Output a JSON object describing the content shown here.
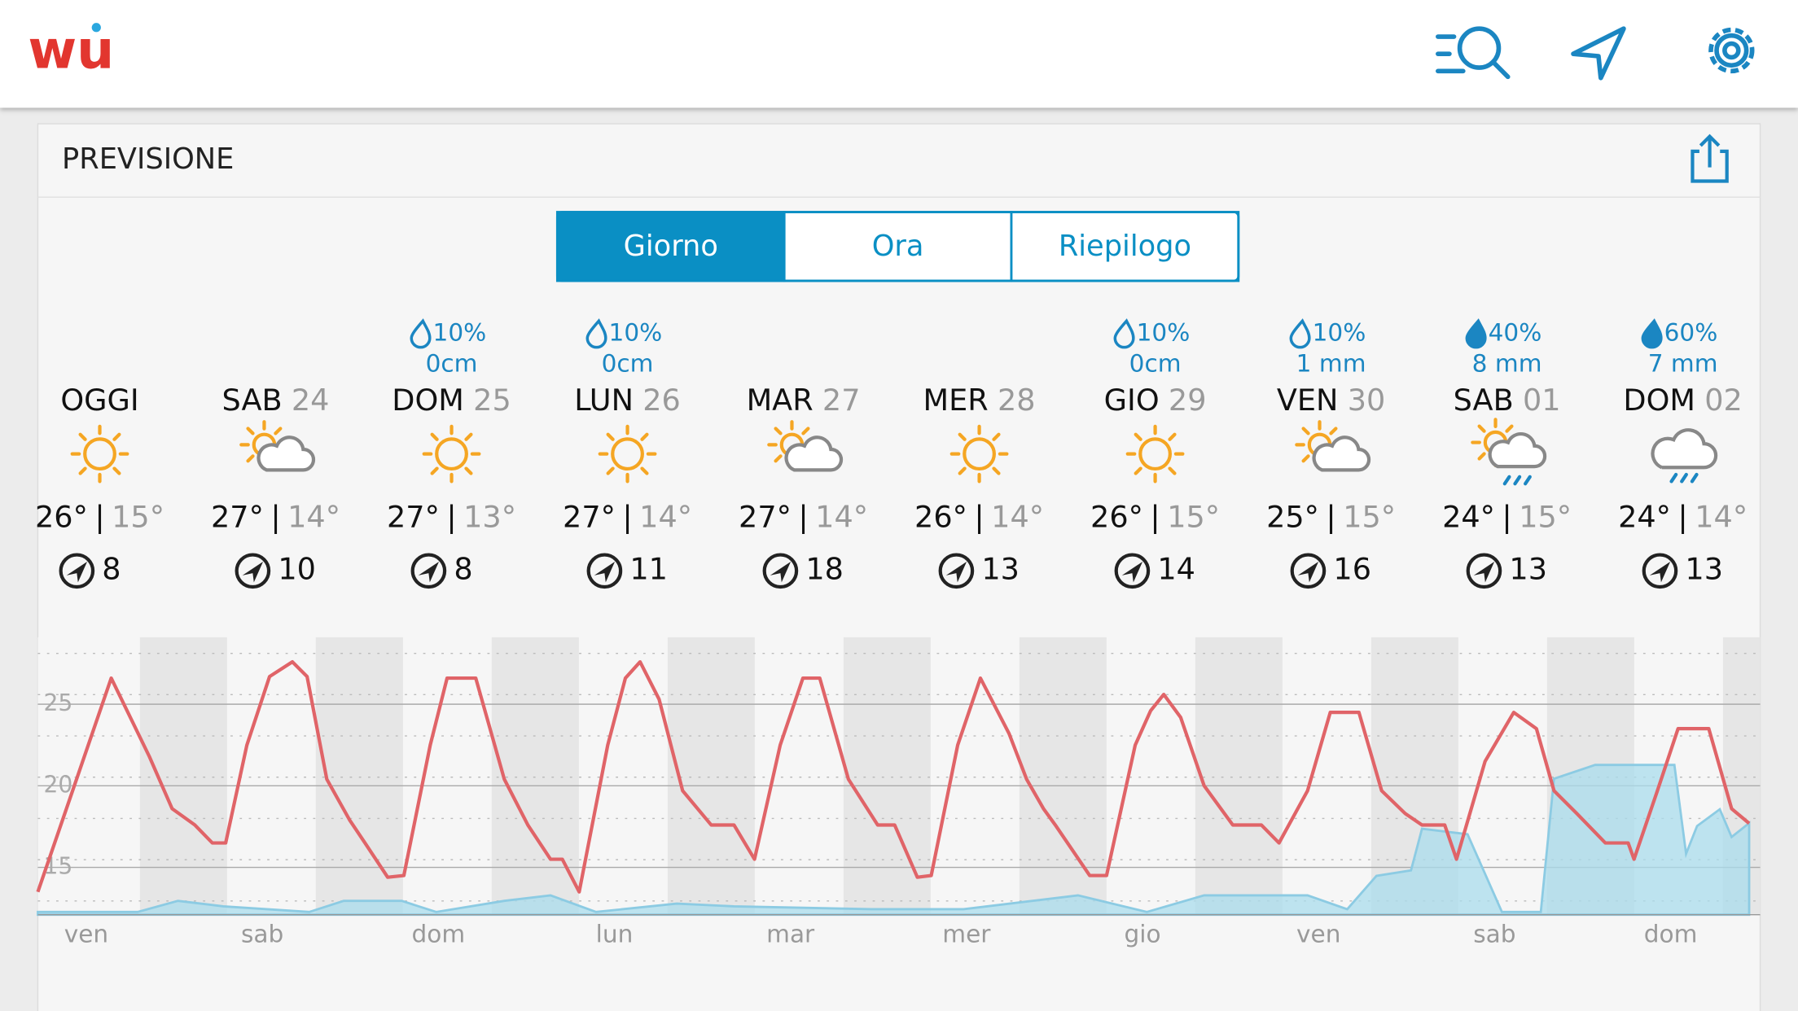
{
  "header": {
    "logo": "wu"
  },
  "panel": {
    "title": "PREVISIONE",
    "tabs": [
      "Giorno",
      "Ora",
      "Riepilogo"
    ],
    "selected_tab": 0
  },
  "days": [
    {
      "name": "OGGI",
      "date": null,
      "precip_chance": null,
      "precip_amount": null,
      "icon": "sunny",
      "high": "26°",
      "low": "15°",
      "wind": "8"
    },
    {
      "name": "SAB",
      "date": "24",
      "precip_chance": null,
      "precip_amount": null,
      "icon": "partly-cloudy",
      "high": "27°",
      "low": "14°",
      "wind": "10"
    },
    {
      "name": "DOM",
      "date": "25",
      "precip_chance": "10%",
      "precip_amount": "0cm",
      "icon": "sunny",
      "high": "27°",
      "low": "13°",
      "wind": "8"
    },
    {
      "name": "LUN",
      "date": "26",
      "precip_chance": "10%",
      "precip_amount": "0cm",
      "icon": "sunny",
      "high": "27°",
      "low": "14°",
      "wind": "11"
    },
    {
      "name": "MAR",
      "date": "27",
      "precip_chance": null,
      "precip_amount": null,
      "icon": "partly-cloudy",
      "high": "27°",
      "low": "14°",
      "wind": "18"
    },
    {
      "name": "MER",
      "date": "28",
      "precip_chance": null,
      "precip_amount": null,
      "icon": "sunny",
      "high": "26°",
      "low": "14°",
      "wind": "13"
    },
    {
      "name": "GIO",
      "date": "29",
      "precip_chance": "10%",
      "precip_amount": "0cm",
      "icon": "sunny",
      "high": "26°",
      "low": "15°",
      "wind": "14"
    },
    {
      "name": "VEN",
      "date": "30",
      "precip_chance": "10%",
      "precip_amount": "1 mm",
      "icon": "partly-cloudy",
      "high": "25°",
      "low": "15°",
      "wind": "16"
    },
    {
      "name": "SAB",
      "date": "01",
      "precip_chance": "40%",
      "precip_amount": "8 mm",
      "icon": "partly-rain",
      "high": "24°",
      "low": "15°",
      "wind": "13"
    },
    {
      "name": "DOM",
      "date": "02",
      "precip_chance": "60%",
      "precip_amount": "7 mm",
      "icon": "rain",
      "high": "24°",
      "low": "14°",
      "wind": "13"
    }
  ],
  "chart_data": {
    "type": "line",
    "xlim": [
      0,
      234.8
    ],
    "ylim": [
      12.1,
      29.1
    ],
    "yticks": [
      15,
      20,
      25
    ],
    "y2lim": [
      0,
      100
    ],
    "xticks": [
      {
        "value": 6.6,
        "label": "ven"
      },
      {
        "value": 30.6,
        "label": "sab"
      },
      {
        "value": 54.6,
        "label": "dom"
      },
      {
        "value": 78.6,
        "label": "lun"
      },
      {
        "value": 102.6,
        "label": "mar"
      },
      {
        "value": 126.6,
        "label": "mer"
      },
      {
        "value": 150.6,
        "label": "gio"
      },
      {
        "value": 174.6,
        "label": "ven"
      },
      {
        "value": 198.6,
        "label": "sab"
      },
      {
        "value": 222.6,
        "label": "dom"
      }
    ],
    "series": [
      {
        "color": "#e06468",
        "x": [
          0,
          4.2,
          10,
          15.2,
          18.3,
          21.4,
          23.8,
          25.6,
          28.5,
          31.6,
          34.7,
          36.7,
          39.4,
          42.5,
          44.6,
          47.7,
          49.9,
          53.5,
          55.8,
          59.7,
          63.6,
          66.8,
          69.9,
          71.5,
          73.8,
          77.7,
          80.1,
          82.1,
          84.7,
          87.9,
          91.8,
          94.9,
          97.7,
          101.2,
          104.3,
          106.6,
          110.5,
          114.5,
          116.8,
          119.9,
          121.8,
          125.4,
          128.5,
          132.4,
          134.8,
          137.1,
          138.7,
          143.4,
          145.7,
          149.6,
          151.7,
          153.5,
          155.8,
          159,
          162.9,
          166.8,
          169.2,
          173.1,
          176.2,
          180.1,
          183.2,
          186.4,
          188.7,
          191.8,
          193.4,
          197.3,
          201.2,
          204.3,
          206.7,
          209.8,
          213.7,
          216.8,
          217.6,
          220.8,
          223.6,
          227.8,
          230.9,
          233.3
        ],
        "values": [
          13.5,
          19,
          26.6,
          21.8,
          18.6,
          17.6,
          16.5,
          16.5,
          22.5,
          26.7,
          27.6,
          26.7,
          20.4,
          17.9,
          16.5,
          14.4,
          14.5,
          22.5,
          26.6,
          26.6,
          20.4,
          17.6,
          15.5,
          15.5,
          13.5,
          22.5,
          26.6,
          27.6,
          25.3,
          19.7,
          17.6,
          17.6,
          15.5,
          22.5,
          26.6,
          26.6,
          20.4,
          17.6,
          17.6,
          14.4,
          14.5,
          22.5,
          26.6,
          23.2,
          20.4,
          18.6,
          17.6,
          14.5,
          14.5,
          22.5,
          24.6,
          25.6,
          24.2,
          20,
          17.6,
          17.6,
          16.5,
          19.7,
          24.5,
          24.5,
          19.7,
          18.3,
          17.6,
          17.6,
          15.5,
          21.5,
          24.5,
          23.5,
          19.7,
          18.3,
          16.5,
          16.5,
          15.5,
          19.7,
          23.5,
          23.5,
          18.6,
          17.7
        ]
      },
      {
        "color": "#a9dcec",
        "axis": "y2",
        "x": [
          0,
          13.6,
          19.1,
          25.3,
          37,
          41.7,
          49.6,
          54.3,
          63.6,
          69.9,
          76.1,
          87.1,
          94.9,
          113.7,
          126.2,
          141.8,
          151.2,
          159,
          173.1,
          178.5,
          182.5,
          187.2,
          188.7,
          194.9,
          199.6,
          204.9,
          206.7,
          212.3,
          223.1,
          224.7,
          226.2,
          229.3,
          230.9,
          233.3
        ],
        "values": [
          1,
          1,
          5,
          3,
          1,
          5,
          5,
          1,
          5,
          7,
          1,
          4,
          3,
          2,
          2,
          7,
          1,
          7,
          7,
          2,
          14,
          16,
          31,
          29,
          1,
          1,
          49,
          54,
          54,
          22,
          32,
          38,
          28,
          33
        ]
      }
    ]
  }
}
